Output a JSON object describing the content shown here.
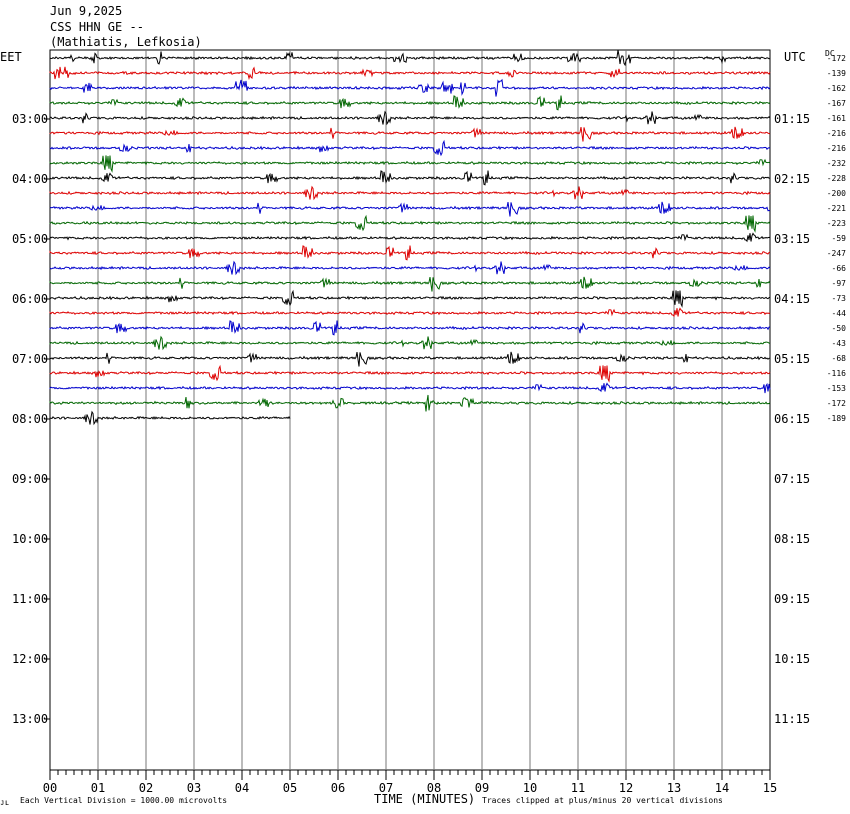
{
  "header": {
    "date": "Jun 9,2025",
    "station": "CSS HHN GE --",
    "location": "(Mathiatis, Lefkosia)"
  },
  "left_zone": "EET",
  "right_zone": "UTC",
  "dc_label": "DC",
  "footer": {
    "scale_note": "Each Vertical Division = 1000.00 microvolts",
    "xlabel": "TIME (MINUTES)",
    "clip_note": "Traces clipped at plus/minus 20 vertical divisions",
    "mark": "ᴊʟ"
  },
  "chart_data": {
    "type": "line",
    "xlabel": "TIME (MINUTES)",
    "xlim": [
      0,
      15
    ],
    "x_ticks": [
      "00",
      "01",
      "02",
      "03",
      "04",
      "05",
      "06",
      "07",
      "08",
      "09",
      "10",
      "11",
      "12",
      "13",
      "14",
      "15"
    ],
    "hour_labels_left": [
      "03:00",
      "04:00",
      "05:00",
      "06:00",
      "07:00",
      "08:00",
      "09:00",
      "10:00",
      "11:00",
      "12:00",
      "13:00"
    ],
    "hour_labels_right": [
      "01:15",
      "02:15",
      "03:15",
      "04:15",
      "05:15",
      "06:15",
      "07:15",
      "08:15",
      "09:15",
      "10:15",
      "11:15"
    ],
    "trace_colors": [
      "#000000",
      "#dd0000",
      "#0000cc",
      "#006600"
    ],
    "dc_offsets": [
      "-172",
      "-139",
      "-162",
      "-167",
      "-161",
      "-216",
      "-216",
      "-232",
      "-228",
      "-200",
      "-221",
      "-223",
      "-59",
      "-247",
      "-66",
      "-97",
      "-73",
      "-44",
      "-50",
      "-43",
      "-68",
      "-116",
      "-153",
      "-172",
      "-189"
    ],
    "trace_count": 25,
    "last_trace_minutes": 5
  }
}
